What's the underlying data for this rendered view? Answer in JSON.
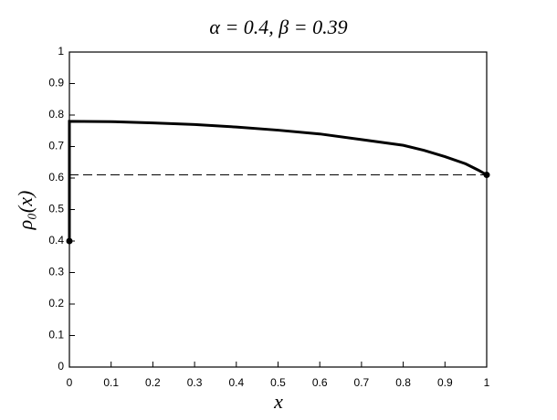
{
  "chart_data": {
    "type": "line",
    "title": "α = 0.4,  β = 0.39",
    "xlabel": "x",
    "ylabel": "ρ₀(x)",
    "xlim": [
      0,
      1
    ],
    "ylim": [
      0,
      1
    ],
    "xticks": [
      0,
      0.1,
      0.2,
      0.3,
      0.4,
      0.5,
      0.6,
      0.7,
      0.8,
      0.9,
      1
    ],
    "yticks": [
      0,
      0.1,
      0.2,
      0.3,
      0.4,
      0.5,
      0.6,
      0.7,
      0.8,
      0.9,
      1
    ],
    "grid": false,
    "series": [
      {
        "color": "#000000",
        "style": "solid",
        "x": [
          0,
          0,
          0.1,
          0.2,
          0.3,
          0.4,
          0.5,
          0.6,
          0.7,
          0.8,
          0.85,
          0.9,
          0.95,
          0.98,
          1
        ],
        "values": [
          0.4,
          0.78,
          0.779,
          0.775,
          0.77,
          0.762,
          0.752,
          0.74,
          0.722,
          0.704,
          0.688,
          0.668,
          0.645,
          0.625,
          0.61
        ]
      },
      {
        "color": "#000000",
        "style": "dashed",
        "x": [
          0,
          1
        ],
        "values": [
          0.61,
          0.61
        ]
      },
      {
        "color": "#000000",
        "style": "points",
        "x": [
          0,
          1
        ],
        "values": [
          0.4,
          0.61
        ]
      }
    ]
  }
}
